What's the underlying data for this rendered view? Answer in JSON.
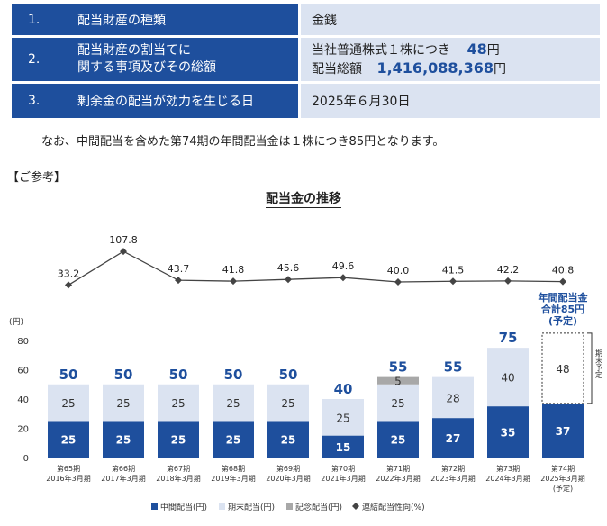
{
  "table": {
    "rows": [
      {
        "num": "1.",
        "label": "配当財産の種類",
        "value": "金銭"
      },
      {
        "num": "2.",
        "label_line1": "配当財産の割当てに",
        "label_line2": "関する事項及びその総額",
        "value_line1_prefix": "当社普通株式１株につき",
        "value_line1_amount": "48",
        "value_line1_unit": "円",
        "value_line2_prefix": "配当総額",
        "value_line2_amount": "1,416,088,368",
        "value_line2_unit": "円"
      },
      {
        "num": "3.",
        "label": "剰余金の配当が効力を生じる日",
        "value": "2025年６月30日"
      }
    ]
  },
  "note": "なお、中間配当を含めた第74期の年間配当金は１株につき85円となります。",
  "reference": "【ご参考】",
  "chart_data": {
    "type": "bar",
    "title": "配当金の推移",
    "ylabel": "(円)",
    "ylim": [
      0,
      80
    ],
    "yticks": [
      0,
      20,
      40,
      60,
      80
    ],
    "categories": [
      {
        "period": "第65期",
        "date": "2016年3月期"
      },
      {
        "period": "第66期",
        "date": "2017年3月期"
      },
      {
        "period": "第67期",
        "date": "2018年3月期"
      },
      {
        "period": "第68期",
        "date": "2019年3月期"
      },
      {
        "period": "第69期",
        "date": "2020年3月期"
      },
      {
        "period": "第70期",
        "date": "2021年3月期"
      },
      {
        "period": "第71期",
        "date": "2022年3月期"
      },
      {
        "period": "第72期",
        "date": "2023年3月期"
      },
      {
        "period": "第73期",
        "date": "2024年3月期"
      },
      {
        "period": "第74期",
        "date": "2025年3月期",
        "extra": "(予定)"
      }
    ],
    "series": [
      {
        "name": "中間配当(円)",
        "color": "#1e4f9d",
        "values": [
          25,
          25,
          25,
          25,
          25,
          15,
          25,
          27,
          35,
          37
        ]
      },
      {
        "name": "期末配当(円)",
        "color": "#dbe3f1",
        "values": [
          25,
          25,
          25,
          25,
          25,
          25,
          25,
          28,
          40,
          48
        ]
      },
      {
        "name": "記念配当(円)",
        "color": "#a8a8a8",
        "values": [
          0,
          0,
          0,
          0,
          0,
          0,
          5,
          0,
          0,
          0
        ]
      }
    ],
    "totals": [
      "50",
      "50",
      "50",
      "50",
      "50",
      "40",
      "55",
      "55",
      "75",
      ""
    ],
    "payout_ratio": {
      "name": "連結配当性向(%)",
      "values": [
        33.2,
        107.8,
        43.7,
        41.8,
        45.6,
        49.6,
        40.0,
        41.5,
        42.2,
        40.8
      ],
      "labels": [
        "33.2",
        "107.8",
        "43.7",
        "41.8",
        "45.6",
        "49.6",
        "40.0",
        "41.5",
        "42.2",
        "40.8"
      ]
    },
    "annotation": {
      "line1": "年間配当金",
      "line2": "合計85円",
      "line3": "(予定)"
    },
    "side_note": "期末予定",
    "colors": {
      "accent": "#1e4f9d"
    }
  }
}
